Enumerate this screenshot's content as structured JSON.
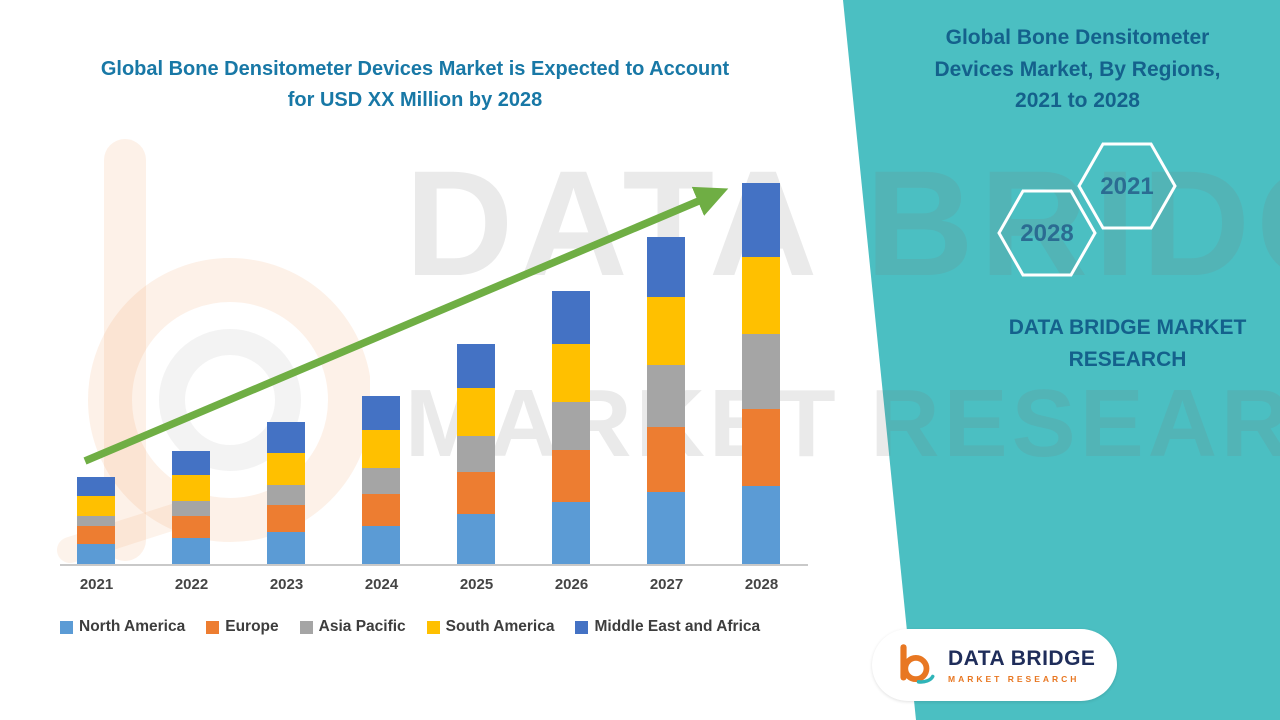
{
  "header": {
    "left_title": "Global Bone Densitometer Devices Market is Expected to Account for USD XX Million by 2028",
    "right_title": "Global Bone Densitometer Devices Market, By Regions, 2021 to 2028"
  },
  "right_panel": {
    "hex_back_year": "2028",
    "hex_front_year": "2021",
    "brand_line": "DATA BRIDGE MARKET RESEARCH"
  },
  "watermark": {
    "line1": "DATA BRIDGE",
    "line2": "MARKET RESEARCH"
  },
  "logo_card": {
    "brand": "DATA BRIDGE",
    "tagline": "MARKET RESEARCH"
  },
  "colors": {
    "panel_teal": "#4BBFC2",
    "left_title_blue": "#1878A6",
    "right_text_blue": "#14618C",
    "arrow_green": "#6FAE44",
    "axis_gray": "#C9C9C9",
    "logo_orange": "#E87722",
    "logo_navy": "#1F2D5A"
  },
  "chart_data": {
    "type": "bar",
    "stacked": true,
    "title": "Global Bone Densitometer Devices Market is Expected to Account for USD XX Million by 2028",
    "categories": [
      "2021",
      "2022",
      "2023",
      "2024",
      "2025",
      "2026",
      "2027",
      "2028"
    ],
    "series": [
      {
        "name": "North America",
        "color": "#5B9BD5",
        "values": [
          20,
          26,
          32,
          38,
          50,
          62,
          72,
          78
        ]
      },
      {
        "name": "Europe",
        "color": "#ED7D31",
        "values": [
          18,
          22,
          27,
          32,
          42,
          52,
          65,
          77
        ]
      },
      {
        "name": "Asia Pacific",
        "color": "#A5A5A5",
        "values": [
          10,
          15,
          20,
          26,
          36,
          48,
          62,
          75
        ]
      },
      {
        "name": "South America",
        "color": "#FFC000",
        "values": [
          20,
          26,
          32,
          38,
          48,
          58,
          68,
          77
        ]
      },
      {
        "name": "Middle East and Africa",
        "color": "#4472C4",
        "values": [
          19,
          24,
          31,
          34,
          44,
          53,
          60,
          74
        ]
      }
    ],
    "totals": [
      87,
      113,
      142,
      168,
      220,
      273,
      327,
      381
    ],
    "value_units": "relative units (actual values shown only as 'USD XX Million')",
    "ylim": [
      0,
      390
    ],
    "y_axis_visible": false,
    "gridlines": false,
    "legend_position": "bottom",
    "trend_arrow": true
  }
}
